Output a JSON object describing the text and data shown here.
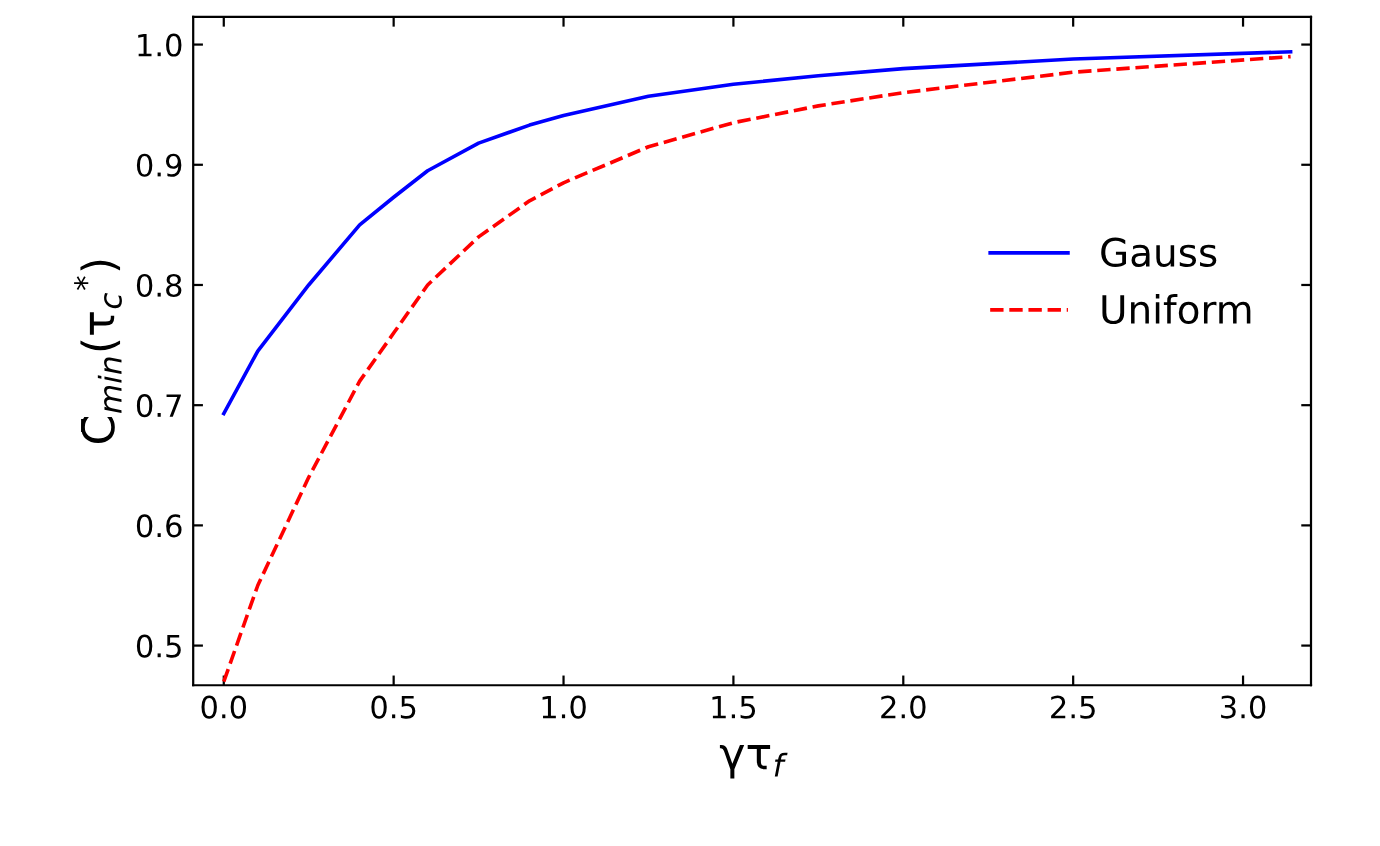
{
  "chart_data": {
    "type": "line",
    "xlabel": "γτ$_{f}$",
    "ylabel": "C̄$_{min}$(τ$_{c}$$^{*}$)",
    "xlim": [
      -0.09,
      3.2
    ],
    "ylim": [
      0.467,
      1.023
    ],
    "xticks": [
      {
        "value": 0,
        "label": "0.0"
      },
      0.5,
      {
        "value": 1,
        "label": "1.0"
      },
      1.5,
      {
        "value": 2,
        "label": "2.0"
      },
      2.5,
      {
        "value": 3,
        "label": "3.0"
      }
    ],
    "yticks": [
      0.5,
      0.6,
      0.7,
      0.8,
      0.9,
      {
        "value": 1,
        "label": "1.0"
      }
    ],
    "grid": false,
    "legend": "right",
    "marker": "none",
    "series": [
      {
        "name": "Gauss",
        "color": "#0000ff",
        "line_style": "solid",
        "x": [
          0,
          0.1,
          0.25,
          0.4,
          0.5,
          0.6,
          0.75,
          0.9,
          1.0,
          1.25,
          1.5,
          1.75,
          2.0,
          2.5,
          3.14
        ],
        "values": [
          0.693,
          0.745,
          0.8,
          0.85,
          0.873,
          0.895,
          0.918,
          0.933,
          0.941,
          0.957,
          0.967,
          0.974,
          0.98,
          0.988,
          0.994
        ]
      },
      {
        "name": "Uniform",
        "color": "#ff0000",
        "line_style": "dashed",
        "x": [
          0,
          0.1,
          0.25,
          0.4,
          0.5,
          0.6,
          0.75,
          0.9,
          1.0,
          1.25,
          1.5,
          1.75,
          2.0,
          2.5,
          3.14
        ],
        "values": [
          0.47,
          0.55,
          0.64,
          0.72,
          0.76,
          0.8,
          0.84,
          0.87,
          0.885,
          0.915,
          0.935,
          0.949,
          0.96,
          0.977,
          0.99
        ]
      }
    ]
  }
}
